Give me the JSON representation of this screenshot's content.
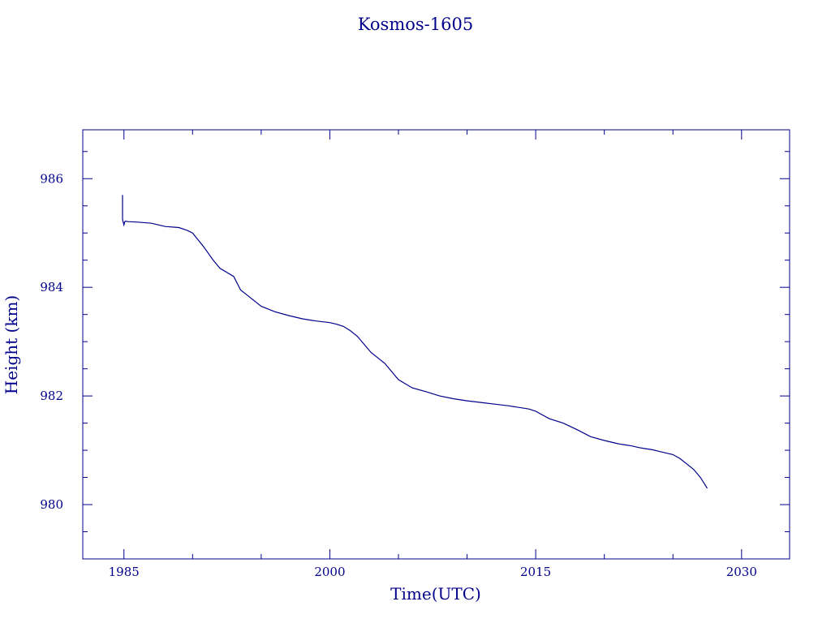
{
  "chart_data": {
    "type": "line",
    "title": "Kosmos-1605",
    "xlabel": "Time(UTC)",
    "ylabel": "Height (km)",
    "xlim": [
      1982,
      2033.5
    ],
    "ylim": [
      979.0,
      986.9
    ],
    "xticks": [
      1985,
      2000,
      2015,
      2030
    ],
    "yticks": [
      980,
      982,
      984,
      986
    ],
    "grid": false,
    "line_color": "#00008b",
    "series": [
      {
        "x": [
          1984.9,
          1984.9,
          1985.0,
          1985.05,
          1985.1,
          1985.3,
          1986.0,
          1987.0,
          1987.5,
          1988.0,
          1989.0,
          1989.6,
          1990.0,
          1990.8,
          1991.5,
          1992.0,
          1993.0,
          1993.5,
          1994.0,
          1995.0,
          1996.0,
          1997.0,
          1998.0,
          1998.5,
          1999.0,
          2000.0,
          2000.5,
          2001.0,
          2001.5,
          2002.0,
          2002.5,
          2003.0,
          2004.0,
          2005.0,
          2006.0,
          2007.0,
          2008.0,
          2009.0,
          2010.0,
          2011.0,
          2012.0,
          2013.0,
          2013.5,
          2014.0,
          2014.5,
          2015.0,
          2015.5,
          2016.0,
          2017.0,
          2018.0,
          2019.0,
          2020.0,
          2021.0,
          2021.5,
          2022.0,
          2022.5,
          2023.0,
          2023.5,
          2024.0,
          2024.5,
          2025.0,
          2025.5,
          2026.0,
          2026.5,
          2027.0,
          2027.5
        ],
        "y": [
          985.7,
          985.25,
          985.15,
          985.2,
          985.22,
          985.21,
          985.2,
          985.18,
          985.15,
          985.12,
          985.1,
          985.05,
          985.0,
          984.75,
          984.5,
          984.35,
          984.2,
          983.95,
          983.85,
          983.65,
          983.55,
          983.48,
          983.42,
          983.4,
          983.38,
          983.35,
          983.32,
          983.28,
          983.2,
          983.1,
          982.95,
          982.8,
          982.6,
          982.3,
          982.15,
          982.08,
          982.0,
          981.95,
          981.91,
          981.88,
          981.85,
          981.82,
          981.8,
          981.78,
          981.76,
          981.72,
          981.65,
          981.58,
          981.5,
          981.38,
          981.25,
          981.18,
          981.12,
          981.1,
          981.08,
          981.05,
          981.03,
          981.01,
          980.98,
          980.95,
          980.92,
          980.85,
          980.75,
          980.65,
          980.5,
          980.3
        ]
      }
    ]
  }
}
